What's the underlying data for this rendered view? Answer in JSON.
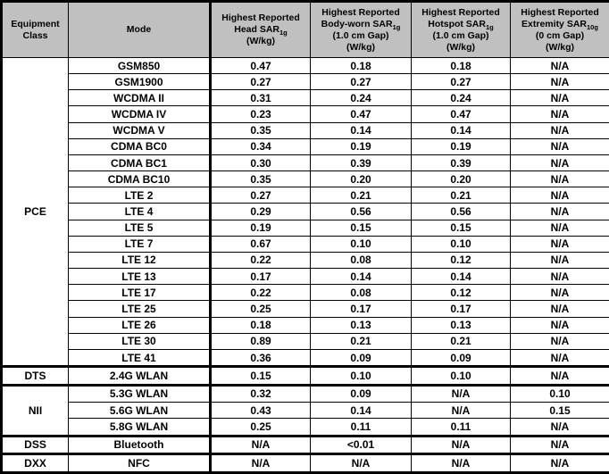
{
  "colors": {
    "header_bg": "#c0c0c0",
    "border": "#000000",
    "text": "#000000"
  },
  "table": {
    "name": "SAR Summary Table",
    "columns": {
      "equipment_class": {
        "line1": "Equipment",
        "line2": "Class"
      },
      "mode": {
        "label": "Mode"
      },
      "head_sar": {
        "line1": "Highest Reported",
        "line2": "Head SAR",
        "sub": "1g",
        "line4": "(W/kg)"
      },
      "body_worn_sar": {
        "line1": "Highest Reported",
        "line2": "Body-worn SAR",
        "sub": "1g",
        "line3": "(1.0 cm Gap)",
        "line4": "(W/kg)"
      },
      "hotspot_sar": {
        "line1": "Highest Reported",
        "line2": "Hotspot SAR",
        "sub": "1g",
        "line3": "(1.0 cm Gap)",
        "line4": "(W/kg)"
      },
      "extremity_sar": {
        "line1": "Highest Reported",
        "line2": "Extremity SAR",
        "sub": "10g",
        "line3": "(0 cm Gap)",
        "line4": "(W/kg)"
      }
    }
  },
  "sections": [
    {
      "equipment_class": "PCE",
      "rows": [
        {
          "mode": "GSM850",
          "head": "0.47",
          "body_worn": "0.18",
          "hotspot": "0.18",
          "extremity": "N/A"
        },
        {
          "mode": "GSM1900",
          "head": "0.27",
          "body_worn": "0.27",
          "hotspot": "0.27",
          "extremity": "N/A"
        },
        {
          "mode": "WCDMA II",
          "head": "0.31",
          "body_worn": "0.24",
          "hotspot": "0.24",
          "extremity": "N/A"
        },
        {
          "mode": "WCDMA IV",
          "head": "0.23",
          "body_worn": "0.47",
          "hotspot": "0.47",
          "extremity": "N/A"
        },
        {
          "mode": "WCDMA V",
          "head": "0.35",
          "body_worn": "0.14",
          "hotspot": "0.14",
          "extremity": "N/A"
        },
        {
          "mode": "CDMA BC0",
          "head": "0.34",
          "body_worn": "0.19",
          "hotspot": "0.19",
          "extremity": "N/A"
        },
        {
          "mode": "CDMA BC1",
          "head": "0.30",
          "body_worn": "0.39",
          "hotspot": "0.39",
          "extremity": "N/A"
        },
        {
          "mode": "CDMA BC10",
          "head": "0.35",
          "body_worn": "0.20",
          "hotspot": "0.20",
          "extremity": "N/A"
        },
        {
          "mode": "LTE 2",
          "head": "0.27",
          "body_worn": "0.21",
          "hotspot": "0.21",
          "extremity": "N/A"
        },
        {
          "mode": "LTE 4",
          "head": "0.29",
          "body_worn": "0.56",
          "hotspot": "0.56",
          "extremity": "N/A"
        },
        {
          "mode": "LTE 5",
          "head": "0.19",
          "body_worn": "0.15",
          "hotspot": "0.15",
          "extremity": "N/A"
        },
        {
          "mode": "LTE 7",
          "head": "0.67",
          "body_worn": "0.10",
          "hotspot": "0.10",
          "extremity": "N/A"
        },
        {
          "mode": "LTE 12",
          "head": "0.22",
          "body_worn": "0.08",
          "hotspot": "0.12",
          "extremity": "N/A"
        },
        {
          "mode": "LTE 13",
          "head": "0.17",
          "body_worn": "0.14",
          "hotspot": "0.14",
          "extremity": "N/A"
        },
        {
          "mode": "LTE 17",
          "head": "0.22",
          "body_worn": "0.08",
          "hotspot": "0.12",
          "extremity": "N/A"
        },
        {
          "mode": "LTE 25",
          "head": "0.25",
          "body_worn": "0.17",
          "hotspot": "0.17",
          "extremity": "N/A"
        },
        {
          "mode": "LTE 26",
          "head": "0.18",
          "body_worn": "0.13",
          "hotspot": "0.13",
          "extremity": "N/A"
        },
        {
          "mode": "LTE 30",
          "head": "0.89",
          "body_worn": "0.21",
          "hotspot": "0.21",
          "extremity": "N/A"
        },
        {
          "mode": "LTE 41",
          "head": "0.36",
          "body_worn": "0.09",
          "hotspot": "0.09",
          "extremity": "N/A"
        }
      ]
    },
    {
      "equipment_class": "DTS",
      "rows": [
        {
          "mode": "2.4G WLAN",
          "head": "0.15",
          "body_worn": "0.10",
          "hotspot": "0.10",
          "extremity": "N/A"
        }
      ]
    },
    {
      "equipment_class": "NII",
      "rows": [
        {
          "mode": "5.3G WLAN",
          "head": "0.32",
          "body_worn": "0.09",
          "hotspot": "N/A",
          "extremity": "0.10"
        },
        {
          "mode": "5.6G WLAN",
          "head": "0.43",
          "body_worn": "0.14",
          "hotspot": "N/A",
          "extremity": "0.15"
        },
        {
          "mode": "5.8G WLAN",
          "head": "0.25",
          "body_worn": "0.11",
          "hotspot": "0.11",
          "extremity": "N/A"
        }
      ]
    },
    {
      "equipment_class": "DSS",
      "rows": [
        {
          "mode": "Bluetooth",
          "head": "N/A",
          "body_worn": "<0.01",
          "hotspot": "N/A",
          "extremity": "N/A"
        }
      ]
    },
    {
      "equipment_class": "DXX",
      "rows": [
        {
          "mode": "NFC",
          "head": "N/A",
          "body_worn": "N/A",
          "hotspot": "N/A",
          "extremity": "N/A"
        }
      ]
    }
  ]
}
